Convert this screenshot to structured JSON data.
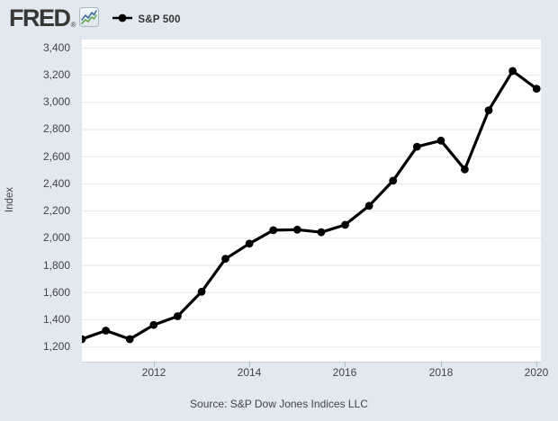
{
  "header": {
    "logo_text": "FRED",
    "registered_symbol": "®",
    "legend": {
      "series_label": "S&P 500",
      "marker_color": "#000000"
    }
  },
  "footer": {
    "source_text": "Source: S&P Dow Jones Indices LLC"
  },
  "colors": {
    "background": "#e1e8f0",
    "plot_background": "#ffffff",
    "line": "#000000",
    "grid": "#e6e6e6",
    "axis_text": "#444444",
    "logo_text": "#373737",
    "icon_line_blue": "#3d6e9e",
    "icon_line_green": "#61a24f"
  },
  "chart_data": {
    "type": "line",
    "title": "",
    "ylabel": "Index",
    "xlabel": "",
    "grid": "horizontal-only",
    "legend_position": "top-header",
    "line_color": "#000000",
    "marker": "filled-circle",
    "xlim": [
      2010.5,
      2020.09
    ],
    "ylim": [
      1092,
      3462
    ],
    "x_tick_values": [
      2012,
      2014,
      2016,
      2018,
      2020
    ],
    "x_tick_labels": [
      "2012",
      "2014",
      "2016",
      "2018",
      "2020"
    ],
    "y_tick_values": [
      1200,
      1400,
      1600,
      1800,
      2000,
      2200,
      2400,
      2600,
      2800,
      3000,
      3200,
      3400
    ],
    "y_tick_labels": [
      "1,200",
      "1,400",
      "1,600",
      "1,800",
      "2,000",
      "2,200",
      "2,400",
      "2,600",
      "2,800",
      "3,000",
      "3,200",
      "3,400"
    ],
    "series": [
      {
        "name": "S&P 500",
        "frequency": "semiannual",
        "dates": [
          "2010-07-01",
          "2011-01-01",
          "2011-07-01",
          "2012-01-01",
          "2012-07-01",
          "2013-01-01",
          "2013-07-01",
          "2014-01-01",
          "2014-07-01",
          "2015-01-01",
          "2015-07-01",
          "2016-01-01",
          "2016-07-01",
          "2017-01-01",
          "2017-07-01",
          "2018-01-01",
          "2018-07-01",
          "2019-01-01",
          "2019-07-01",
          "2020-01-01"
        ],
        "values": [
          1257.64,
          1320.64,
          1257.6,
          1362.16,
          1426.19,
          1606.28,
          1848.36,
          1960.23,
          2058.9,
          2063.11,
          2043.94,
          2098.86,
          2238.83,
          2423.41,
          2673.61,
          2718.37,
          2506.85,
          2941.76,
          3230.78,
          3100.29
        ]
      }
    ],
    "source": "Source: S&P Dow Jones Indices LLC"
  }
}
